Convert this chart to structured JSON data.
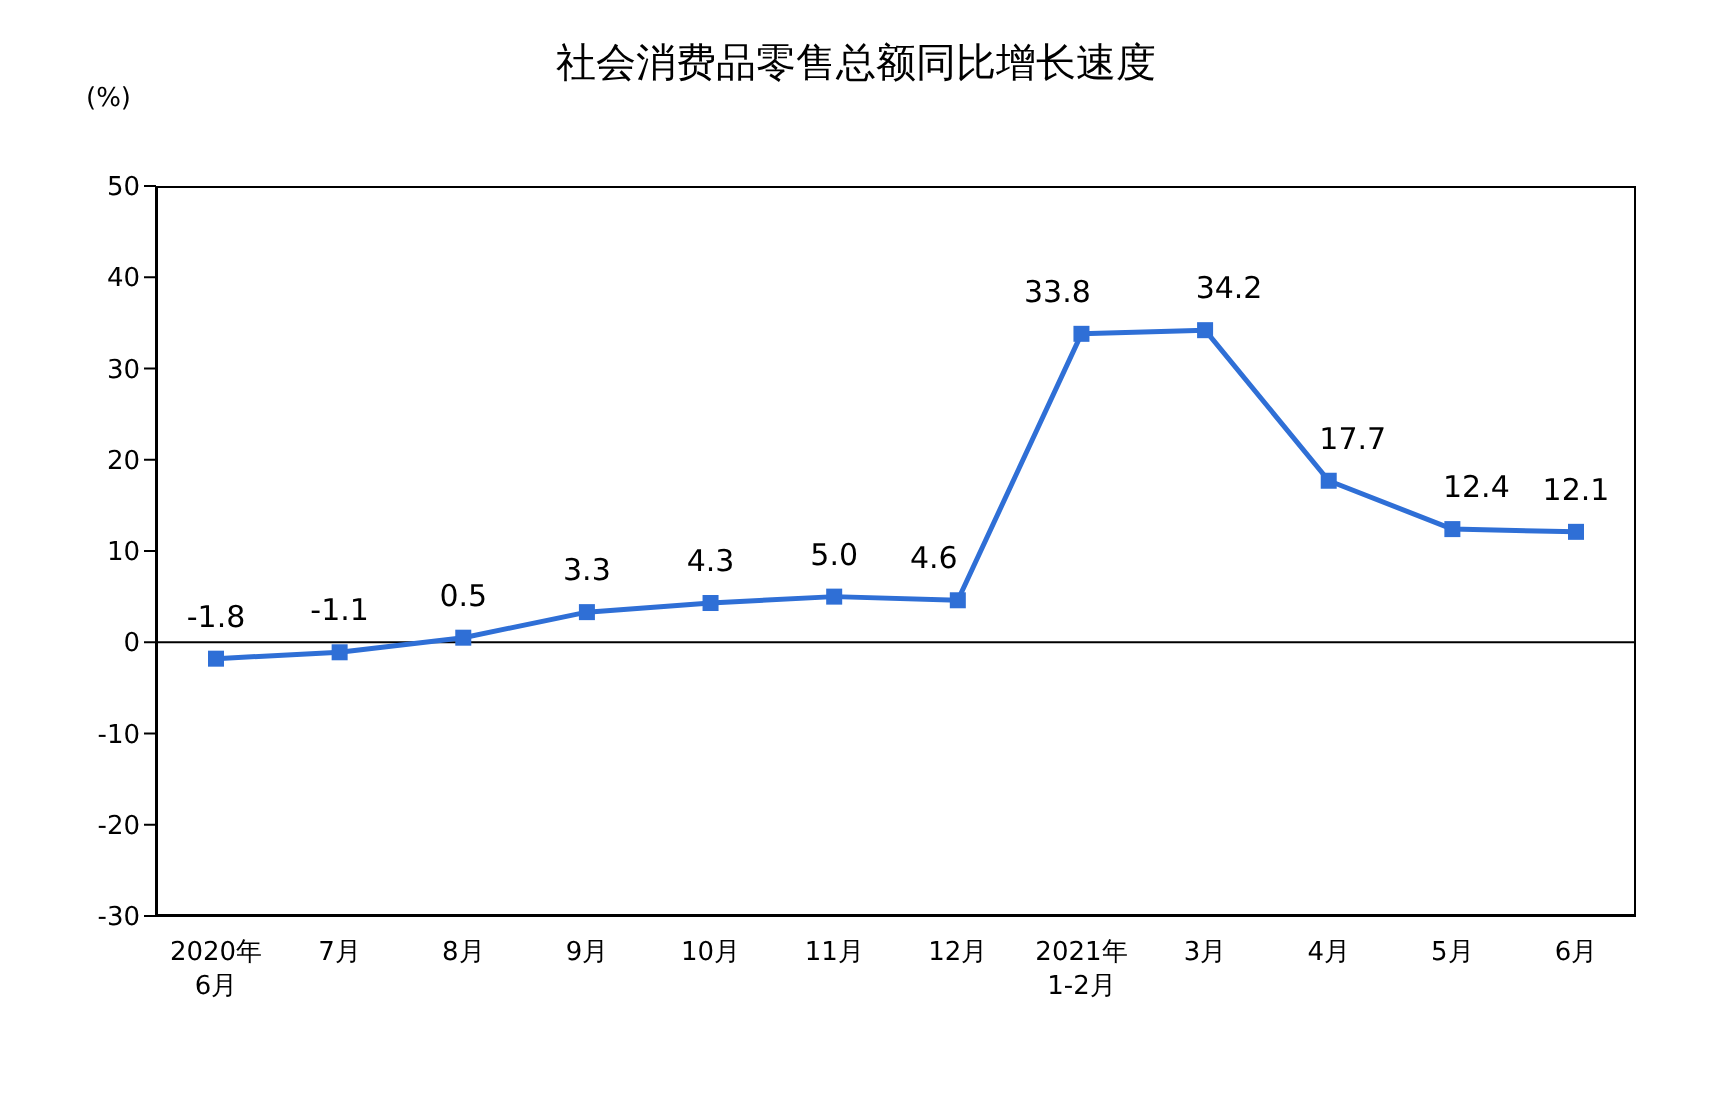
{
  "chart_data": {
    "type": "line",
    "title": "社会消费品零售总额同比增长速度",
    "ylabel": "(%)",
    "categories": [
      "2020年\n6月",
      "7月",
      "8月",
      "9月",
      "10月",
      "11月",
      "12月",
      "2021年\n1-2月",
      "3月",
      "4月",
      "5月",
      "6月"
    ],
    "series": [
      {
        "color": "#2f6fd6",
        "values": [
          -1.8,
          -1.1,
          0.5,
          3.3,
          4.3,
          5.0,
          4.6,
          33.8,
          34.2,
          17.7,
          12.4,
          12.1
        ],
        "value_labels": [
          "-1.8",
          "-1.1",
          "0.5",
          "3.3",
          "4.3",
          "5.0",
          "4.6",
          "33.8",
          "34.2",
          "17.7",
          "12.4",
          "12.1"
        ]
      }
    ],
    "ylim": [
      -30,
      50
    ],
    "yticks": [
      -30,
      -20,
      -10,
      0,
      10,
      20,
      30,
      40,
      50
    ],
    "ref_lines": [
      {
        "axis": "y",
        "value": 0,
        "color": "#000000"
      }
    ],
    "grid": false,
    "marker": "square",
    "line_style": "solid"
  }
}
